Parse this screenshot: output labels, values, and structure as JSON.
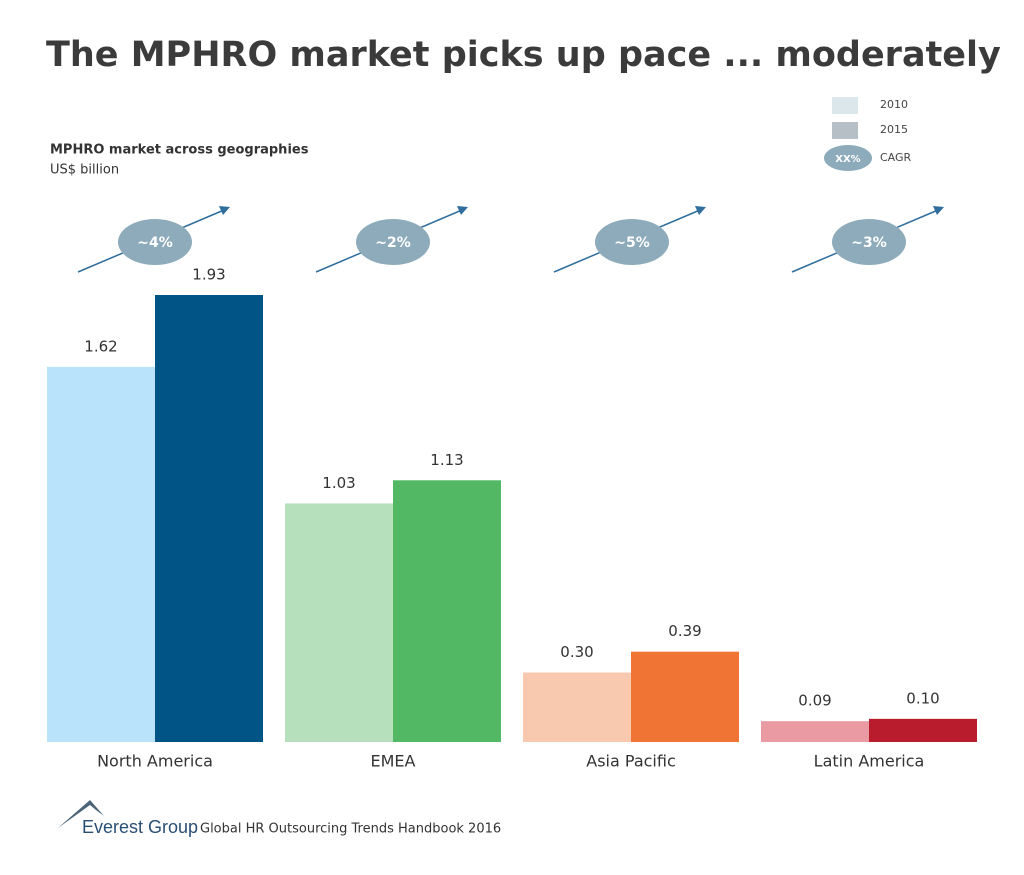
{
  "chart_data": {
    "type": "bar",
    "title": "The MPHRO market picks up pace ... moderately",
    "subtitle": "MPHRO market across geographies",
    "unit_label": "US$ billion",
    "categories": [
      "North America",
      "EMEA",
      "Asia Pacific",
      "Latin America"
    ],
    "series": [
      {
        "name": "2010",
        "color": "#dce7ec",
        "point_colors": [
          "#b8e3fb",
          "#b6e0bc",
          "#f8c9ae",
          "#e99aa2"
        ],
        "values": [
          1.62,
          1.03,
          0.3,
          0.09
        ],
        "value_labels": [
          "1.62",
          "1.03",
          "0.30",
          "0.09"
        ]
      },
      {
        "name": "2015",
        "color": "#b5bfc5",
        "point_colors": [
          "#005586",
          "#52b864",
          "#f07434",
          "#b81c2d"
        ],
        "values": [
          1.93,
          1.13,
          0.39,
          0.1
        ],
        "value_labels": [
          "1.93",
          "1.13",
          "0.39",
          "0.10"
        ]
      }
    ],
    "cagr_labels": [
      "~4%",
      "~2%",
      "~5%",
      "~3%"
    ],
    "cagr_legend": {
      "symbol": "XX%",
      "label": "CAGR"
    },
    "footer": {
      "brand": "Everest Group",
      "source": "Global HR Outsourcing Trends Handbook 2016"
    }
  }
}
